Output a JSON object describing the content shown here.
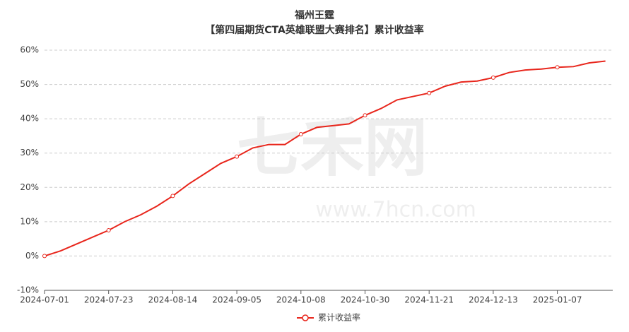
{
  "chart_data": {
    "type": "line",
    "title": "福州王霆",
    "subtitle": "【第四届期货CTA英雄联盟大赛排名】累计收益率",
    "watermark": "七禾网",
    "watermark_url": "www.7hcn.com",
    "categories": [
      "2024-07-01",
      null,
      null,
      null,
      "2024-07-23",
      null,
      null,
      null,
      "2024-08-14",
      null,
      null,
      null,
      "2024-09-05",
      null,
      null,
      null,
      "2024-10-08",
      null,
      null,
      null,
      "2024-10-30",
      null,
      null,
      null,
      "2024-11-21",
      null,
      null,
      null,
      "2024-12-13",
      null,
      null,
      null,
      "2025-01-07",
      null,
      null,
      null
    ],
    "series": [
      {
        "name": "累计收益率",
        "color": "#e8261c",
        "values": [
          0,
          1.5,
          3.5,
          5.5,
          7.5,
          10,
          12,
          14.5,
          17.5,
          21,
          24,
          27,
          29,
          31.5,
          32.5,
          32.5,
          35.5,
          37.5,
          38,
          38.5,
          41,
          43,
          45.5,
          46.5,
          47.5,
          49.5,
          50.7,
          51,
          52,
          53.5,
          54.2,
          54.5,
          55,
          55.2,
          56.3,
          56.8
        ]
      }
    ],
    "ylim": [
      -10,
      60
    ],
    "yticks": [
      {
        "value": -10,
        "label": "-10%"
      },
      {
        "value": 0,
        "label": "0%"
      },
      {
        "value": 10,
        "label": "10%"
      },
      {
        "value": 20,
        "label": "20%"
      },
      {
        "value": 30,
        "label": "30%"
      },
      {
        "value": 40,
        "label": "40%"
      },
      {
        "value": 50,
        "label": "50%"
      },
      {
        "value": 60,
        "label": "60%"
      }
    ],
    "grid": true,
    "legend": "bottom"
  }
}
